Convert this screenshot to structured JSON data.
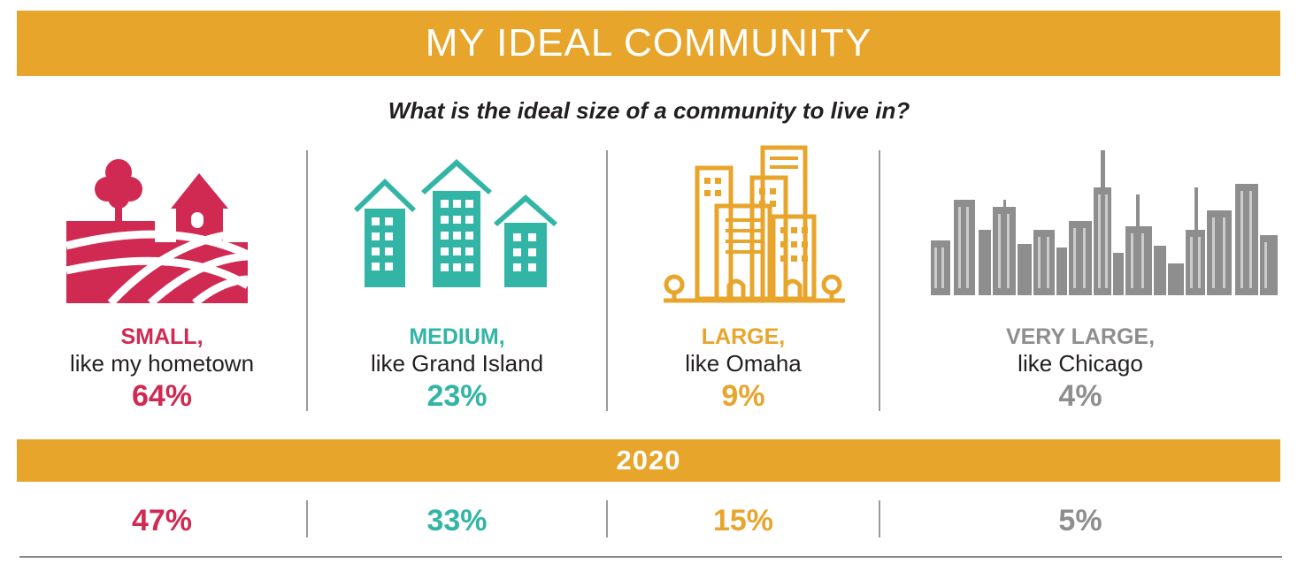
{
  "header": {
    "title": "MY IDEAL COMMUNITY"
  },
  "question": "What is the ideal size of a community to live in?",
  "colors": {
    "banner": "#E8A52C",
    "small": "#D12A52",
    "medium": "#33B5A6",
    "large": "#E8A52C",
    "very_large": "#8E8E8E"
  },
  "comparison": {
    "year_label": "2020"
  },
  "chart_data": {
    "type": "table",
    "categories": [
      {
        "label": "SMALL,",
        "sublabel": "like my hometown",
        "icon": "farm-icon"
      },
      {
        "label": "MEDIUM,",
        "sublabel": "like Grand Island",
        "icon": "apartments-icon"
      },
      {
        "label": "LARGE,",
        "sublabel": "like Omaha",
        "icon": "office-buildings-icon"
      },
      {
        "label": "VERY LARGE,",
        "sublabel": "like Chicago",
        "icon": "skyline-icon"
      }
    ],
    "series": [
      {
        "name": "",
        "values": [
          64,
          23,
          9,
          4
        ],
        "display": [
          "64%",
          "23%",
          "9%",
          "4%"
        ]
      },
      {
        "name": "2020",
        "values": [
          47,
          33,
          15,
          5
        ],
        "display": [
          "47%",
          "33%",
          "15%",
          "5%"
        ]
      }
    ]
  }
}
